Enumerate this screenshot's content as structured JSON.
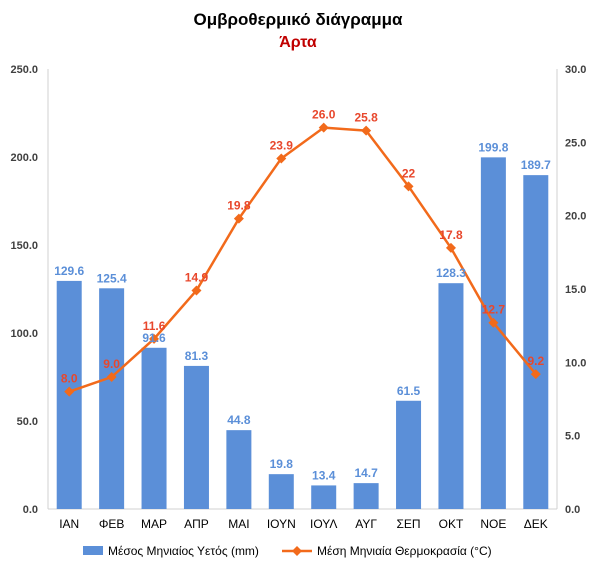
{
  "chart_data": {
    "type": "bar",
    "title": "Ομβροθερμικό διάγραμμα",
    "subtitle": "Άρτα",
    "categories": [
      "ΙΑΝ",
      "ΦΕΒ",
      "ΜΑΡ",
      "ΑΠΡ",
      "ΜΑΙ",
      "ΙΟΥΝ",
      "ΙΟΥΛ",
      "ΑΥΓ",
      "ΣΕΠ",
      "ΟΚΤ",
      "ΝΟΕ",
      "ΔΕΚ"
    ],
    "series": [
      {
        "name": "Μέσος Μηνιαίος Υετός (mm)",
        "type": "bar",
        "axis": "left",
        "color": "#5B8FD8",
        "label_color": "#5B8FD8",
        "values": [
          129.6,
          125.4,
          91.6,
          81.3,
          44.8,
          19.8,
          13.4,
          14.7,
          61.5,
          128.3,
          199.8,
          189.7
        ],
        "labels": [
          "129.6",
          "125.4",
          "91.6",
          "81.3",
          "44.8",
          "19.8",
          "13.4",
          "14.7",
          "61.5",
          "128.3",
          "199.8",
          "189.7"
        ]
      },
      {
        "name": "Μέση Μηνιαία Θερμοκρασία (°C)",
        "type": "line",
        "axis": "right",
        "color": "#F26A1B",
        "label_color": "#E8472C",
        "marker": "diamond",
        "values": [
          8.0,
          9.0,
          11.6,
          14.9,
          19.8,
          23.9,
          26.0,
          25.8,
          22,
          17.8,
          12.7,
          9.2
        ],
        "labels": [
          "8.0",
          "9.0",
          "11.6",
          "14.9",
          "19.8",
          "23.9",
          "26.0",
          "25.8",
          "22",
          "17.8",
          "12.7",
          "9.2"
        ]
      }
    ],
    "y_left": {
      "lim": [
        0,
        250
      ],
      "ticks": [
        "0.0",
        "50.0",
        "100.0",
        "150.0",
        "200.0",
        "250.0"
      ]
    },
    "y_right": {
      "lim": [
        0,
        30
      ],
      "ticks": [
        "0.0",
        "5.0",
        "10.0",
        "15.0",
        "20.0",
        "25.0",
        "30.0"
      ]
    },
    "grid": false,
    "legend_position": "bottom",
    "subtitle_color": "#C00000"
  }
}
